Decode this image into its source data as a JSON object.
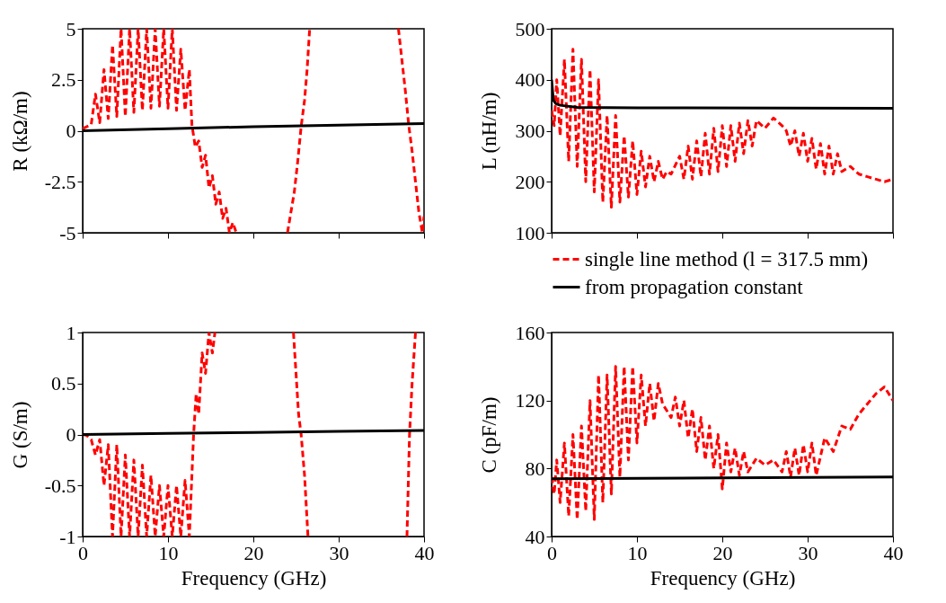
{
  "chart_data": [
    {
      "type": "line",
      "ylabel": "R (kΩ/m)",
      "xlim": [
        0,
        40
      ],
      "xticks": [
        0,
        10,
        20,
        30,
        40
      ],
      "ylim": [
        -5,
        5
      ],
      "yticks": [
        -5,
        -2.5,
        0,
        2.5,
        5
      ],
      "tick_labels": "y",
      "series": [
        {
          "color": "#ff0000",
          "line_style": "dashed",
          "x": [
            0,
            0.5,
            1,
            1.5,
            2,
            2.5,
            3,
            3.5,
            4,
            4.5,
            5,
            5.5,
            6,
            6.5,
            7,
            7.5,
            8,
            8.5,
            9,
            9.5,
            10,
            10.5,
            11,
            11.5,
            12,
            12.5,
            12.8,
            13.2,
            13.6,
            14,
            14.4,
            14.8,
            15.2,
            15.6,
            16,
            16.4,
            16.8,
            17.2,
            17.6,
            18,
            21,
            24,
            24.4,
            24.8,
            25.2,
            25.6,
            26,
            26.3,
            26.6,
            32,
            37,
            37.4,
            37.8,
            38.2,
            38.6,
            39,
            39.4,
            39.8,
            40
          ],
          "values": [
            0.1,
            0.2,
            0.3,
            1.8,
            0.4,
            3,
            0.6,
            4.2,
            0.7,
            5,
            0.7,
            5,
            0.9,
            5,
            1,
            5,
            1.1,
            5,
            1.2,
            5,
            1.1,
            5,
            1,
            4,
            1,
            3,
            0.3,
            -0.8,
            -0.5,
            -1.8,
            -1.2,
            -2.8,
            -2.2,
            -3.6,
            -3,
            -4.3,
            -3.8,
            -5,
            -4.5,
            -5,
            null,
            -5,
            -4,
            -3,
            -1.5,
            0.2,
            1.5,
            3,
            5,
            null,
            5,
            3.5,
            2,
            0.3,
            -1,
            -2.5,
            -4,
            -5,
            -4.2
          ]
        },
        {
          "color": "#000000",
          "line_style": "solid",
          "x": [
            0,
            10,
            20,
            30,
            40
          ],
          "values": [
            0,
            0.1,
            0.2,
            0.27,
            0.35
          ]
        }
      ]
    },
    {
      "type": "line",
      "ylabel": "L (nH/m)",
      "xlim": [
        0,
        40
      ],
      "xticks": [
        0,
        10,
        20,
        30,
        40
      ],
      "ylim": [
        100,
        500
      ],
      "yticks": [
        100,
        200,
        300,
        400,
        500
      ],
      "tick_labels": "y",
      "legend": "bottom",
      "series": [
        {
          "name": "single line method (l = 317.5 mm)",
          "color": "#ff0000",
          "line_style": "dashed",
          "x": [
            0,
            0.3,
            0.6,
            1,
            1.5,
            2,
            2.5,
            3,
            3.5,
            4,
            4.5,
            5,
            5.5,
            6,
            6.5,
            7,
            7.5,
            8,
            8.5,
            9,
            9.5,
            10,
            10.5,
            11,
            11.5,
            12,
            12.5,
            13,
            13.5,
            14,
            15,
            15.5,
            16,
            16.5,
            17,
            17.5,
            18,
            18.5,
            19,
            19.5,
            20,
            20.5,
            21,
            21.5,
            22,
            22.5,
            23,
            23.5,
            24,
            25,
            26,
            27,
            27.5,
            28,
            28.5,
            29,
            29.5,
            30,
            30.5,
            31,
            31.5,
            32,
            32.5,
            33,
            33.5,
            34,
            35,
            36,
            37,
            38,
            39,
            40
          ],
          "values": [
            340,
            310,
            400,
            290,
            440,
            240,
            460,
            230,
            440,
            200,
            420,
            180,
            400,
            160,
            330,
            150,
            330,
            160,
            290,
            170,
            280,
            175,
            260,
            190,
            250,
            200,
            240,
            205,
            220,
            215,
            250,
            205,
            270,
            205,
            280,
            210,
            295,
            215,
            305,
            220,
            310,
            230,
            310,
            240,
            315,
            255,
            320,
            270,
            320,
            305,
            325,
            310,
            300,
            270,
            300,
            250,
            295,
            240,
            285,
            225,
            275,
            215,
            270,
            215,
            255,
            220,
            230,
            215,
            210,
            205,
            200,
            205
          ]
        },
        {
          "name": "from propagation constant",
          "color": "#000000",
          "line_style": "solid",
          "x": [
            0,
            0.2,
            0.5,
            1,
            3,
            10,
            40
          ],
          "values": [
            400,
            360,
            353,
            350,
            346,
            345,
            344
          ]
        }
      ]
    },
    {
      "type": "line",
      "xlabel": "Frequency (GHz)",
      "ylabel": "G (S/m)",
      "xlim": [
        0,
        40
      ],
      "xticks": [
        0,
        10,
        20,
        30,
        40
      ],
      "ylim": [
        -1,
        1
      ],
      "yticks": [
        -1,
        -0.5,
        0,
        0.5,
        1
      ],
      "series": [
        {
          "color": "#ff0000",
          "line_style": "dashed",
          "x": [
            0,
            0.5,
            1,
            1.5,
            2,
            2.5,
            3,
            3.5,
            4,
            4.5,
            5,
            5.5,
            6,
            6.5,
            7,
            7.5,
            8,
            8.5,
            9,
            9.5,
            10,
            10.5,
            11,
            11.5,
            12,
            12.5,
            12.8,
            13,
            13.3,
            13.6,
            14,
            14.4,
            14.8,
            15.2,
            15.5,
            20,
            24.7,
            25,
            25.3,
            25.6,
            26,
            26.4,
            32,
            38,
            38.3,
            38.6,
            39
          ],
          "values": [
            0,
            -0.01,
            -0.05,
            -0.2,
            -0.05,
            -0.5,
            -0.1,
            -1,
            -0.1,
            -1,
            -0.2,
            -1,
            -0.25,
            -1,
            -0.3,
            -1,
            -0.4,
            -1,
            -0.5,
            -1,
            -0.5,
            -1,
            -0.5,
            -1,
            -0.45,
            -1,
            -0.4,
            0,
            0.4,
            0.2,
            0.8,
            0.6,
            1,
            0.8,
            1,
            null,
            1,
            0.6,
            0.2,
            0,
            -0.4,
            -1,
            null,
            -1,
            0,
            0.5,
            1
          ]
        },
        {
          "color": "#000000",
          "line_style": "solid",
          "x": [
            0,
            10,
            20,
            30,
            40
          ],
          "values": [
            0,
            0.01,
            0.02,
            0.03,
            0.04
          ]
        }
      ]
    },
    {
      "type": "line",
      "xlabel": "Frequency (GHz)",
      "ylabel": "C (pF/m)",
      "xlim": [
        0,
        40
      ],
      "xticks": [
        0,
        10,
        20,
        30,
        40
      ],
      "ylim": [
        40,
        160
      ],
      "yticks": [
        40,
        80,
        120,
        160
      ],
      "series": [
        {
          "color": "#ff0000",
          "line_style": "dashed",
          "x": [
            0,
            0.3,
            0.6,
            1,
            1.5,
            2,
            2.5,
            3,
            3.5,
            4,
            4.5,
            5,
            5.5,
            6,
            6.5,
            7,
            7.5,
            8,
            8.5,
            9,
            9.5,
            10,
            10.5,
            11,
            11.5,
            12,
            12.5,
            13,
            14,
            14.5,
            15,
            15.5,
            16,
            16.5,
            17,
            17.5,
            18,
            18.5,
            19,
            19.5,
            20,
            20.5,
            21,
            21.5,
            22,
            22.5,
            23,
            24,
            25,
            26,
            27,
            27.5,
            28,
            28.5,
            29,
            29.5,
            30,
            30.5,
            31,
            32,
            33,
            34,
            35,
            36,
            37,
            38,
            39,
            40
          ],
          "values": [
            75,
            65,
            85,
            60,
            95,
            52,
            100,
            50,
            105,
            55,
            120,
            50,
            135,
            60,
            135,
            65,
            140,
            75,
            140,
            85,
            140,
            95,
            135,
            105,
            130,
            108,
            130,
            118,
            110,
            122,
            105,
            120,
            98,
            115,
            90,
            110,
            85,
            105,
            80,
            100,
            68,
            95,
            78,
            92,
            76,
            90,
            78,
            86,
            82,
            85,
            78,
            90,
            75,
            92,
            76,
            94,
            78,
            95,
            76,
            98,
            90,
            105,
            103,
            112,
            118,
            124,
            128,
            120
          ]
        },
        {
          "color": "#000000",
          "line_style": "solid",
          "x": [
            0,
            20,
            40
          ],
          "values": [
            74,
            74.5,
            75
          ]
        }
      ]
    }
  ]
}
